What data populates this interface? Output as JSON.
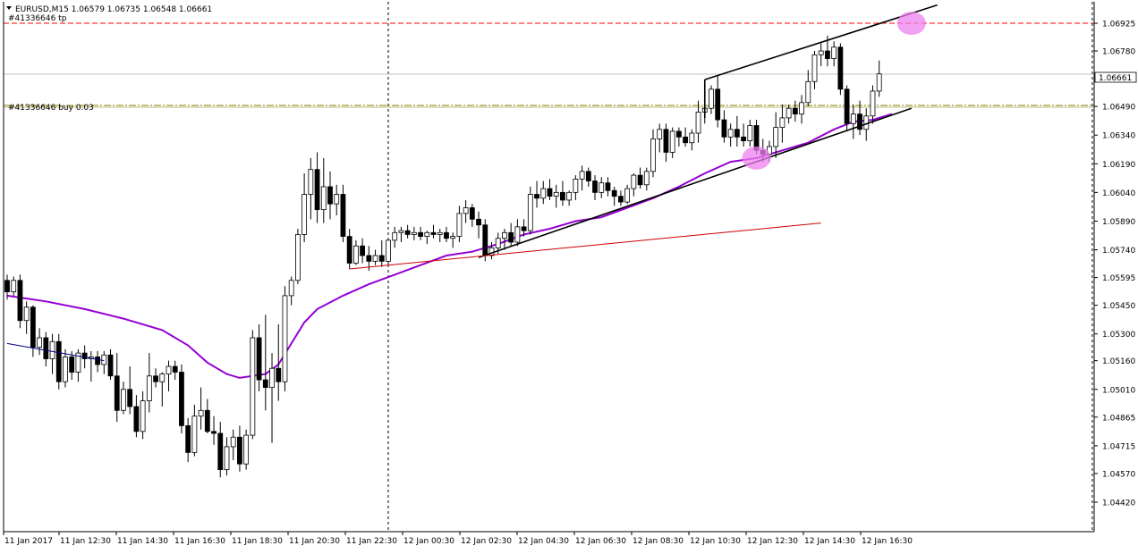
{
  "header": {
    "symbol_line": "EURUSD,M15  1.06579 1.06735 1.06548 1.06661",
    "tp_label": "#41336646 tp",
    "buy_label": "#41336646 buy 0.03"
  },
  "colors": {
    "background": "#ffffff",
    "candle_bull_fill": "#ffffff",
    "candle_bear_fill": "#000000",
    "candle_outline": "#000000",
    "ma_line": "#9400d3",
    "tp_line": "#ff0000",
    "entry_line": "#808000",
    "red_trendline": "#cc0000",
    "blue_trendline": "#000080",
    "highlight": "#ee82ee",
    "current_price_box": "#ffffff"
  },
  "chart_data": {
    "type": "candlestick",
    "title": "EURUSD,M15",
    "ohlc_header": {
      "open": 1.06579,
      "high": 1.06735,
      "low": 1.06548,
      "close": 1.06661
    },
    "y_ticks": [
      1.06925,
      1.0678,
      1.06635,
      1.0649,
      1.0634,
      1.0619,
      1.0604,
      1.0589,
      1.0574,
      1.05595,
      1.0545,
      1.053,
      1.0516,
      1.0501,
      1.04865,
      1.04715,
      1.0457,
      1.0442
    ],
    "x_ticks": [
      "11 Jan 2017",
      "11 Jan 12:30",
      "11 Jan 14:30",
      "11 Jan 16:30",
      "11 Jan 18:30",
      "11 Jan 20:30",
      "11 Jan 22:30",
      "12 Jan 00:30",
      "12 Jan 02:30",
      "12 Jan 04:30",
      "12 Jan 06:30",
      "12 Jan 08:30",
      "12 Jan 10:30",
      "12 Jan 12:30",
      "12 Jan 14:30",
      "12 Jan 16:30"
    ],
    "current_price": 1.06661,
    "tp_level": 1.06925,
    "entry_level": 1.06495,
    "grid": false,
    "ohlc": [
      [
        1.0558,
        1.0561,
        1.0548,
        1.0552
      ],
      [
        1.0552,
        1.056,
        1.055,
        1.0558
      ],
      [
        1.0558,
        1.0561,
        1.0533,
        1.0537
      ],
      [
        1.0537,
        1.0547,
        1.053,
        1.0544
      ],
      [
        1.0544,
        1.0545,
        1.0518,
        1.0523
      ],
      [
        1.0523,
        1.0533,
        1.0519,
        1.0528
      ],
      [
        1.0528,
        1.0531,
        1.0513,
        1.0517
      ],
      [
        1.0517,
        1.053,
        1.0509,
        1.0526
      ],
      [
        1.0526,
        1.053,
        1.0501,
        1.0505
      ],
      [
        1.0505,
        1.0522,
        1.0502,
        1.0518
      ],
      [
        1.0518,
        1.0521,
        1.0506,
        1.051
      ],
      [
        1.051,
        1.0522,
        1.0505,
        1.052
      ],
      [
        1.052,
        1.0524,
        1.0512,
        1.0517
      ],
      [
        1.0517,
        1.0521,
        1.0505,
        1.0518
      ],
      [
        1.0518,
        1.0521,
        1.051,
        1.0514
      ],
      [
        1.0514,
        1.0521,
        1.0509,
        1.0519
      ],
      [
        1.0519,
        1.0522,
        1.0506,
        1.0508
      ],
      [
        1.0508,
        1.052,
        1.0484,
        1.049
      ],
      [
        1.049,
        1.0505,
        1.0488,
        1.0501
      ],
      [
        1.0501,
        1.0513,
        1.0488,
        1.0492
      ],
      [
        1.0492,
        1.0498,
        1.0476,
        1.0479
      ],
      [
        1.0479,
        1.05,
        1.0475,
        1.0495
      ],
      [
        1.0495,
        1.052,
        1.0489,
        1.0508
      ],
      [
        1.0508,
        1.0512,
        1.0502,
        1.0505
      ],
      [
        1.0505,
        1.051,
        1.0492,
        1.0509
      ],
      [
        1.0509,
        1.0516,
        1.05,
        1.0513
      ],
      [
        1.0513,
        1.0516,
        1.0506,
        1.051
      ],
      [
        1.051,
        1.0514,
        1.0478,
        1.0482
      ],
      [
        1.0482,
        1.0486,
        1.0463,
        1.0468
      ],
      [
        1.0468,
        1.0493,
        1.0466,
        1.0487
      ],
      [
        1.0487,
        1.0502,
        1.048,
        1.049
      ],
      [
        1.049,
        1.0496,
        1.0478,
        1.0479
      ],
      [
        1.0479,
        1.0487,
        1.0472,
        1.0478
      ],
      [
        1.0478,
        1.0484,
        1.0455,
        1.0459
      ],
      [
        1.0459,
        1.0476,
        1.0456,
        1.0471
      ],
      [
        1.0471,
        1.048,
        1.0464,
        1.0476
      ],
      [
        1.0476,
        1.0482,
        1.0458,
        1.0462
      ],
      [
        1.0462,
        1.048,
        1.0459,
        1.0477
      ],
      [
        1.0477,
        1.0532,
        1.0475,
        1.0528
      ],
      [
        1.0528,
        1.0535,
        1.05,
        1.0506
      ],
      [
        1.0506,
        1.054,
        1.049,
        1.0502
      ],
      [
        1.0502,
        1.052,
        1.0473,
        1.0512
      ],
      [
        1.0512,
        1.0535,
        1.0495,
        1.0505
      ],
      [
        1.0505,
        1.0555,
        1.05,
        1.055
      ],
      [
        1.055,
        1.056,
        1.0545,
        1.0558
      ],
      [
        1.0558,
        1.0585,
        1.0556,
        1.0582
      ],
      [
        1.0582,
        1.0614,
        1.0578,
        1.0603
      ],
      [
        1.0603,
        1.0622,
        1.059,
        1.0616
      ],
      [
        1.0616,
        1.0625,
        1.0588,
        1.0595
      ],
      [
        1.0595,
        1.0622,
        1.0588,
        1.0607
      ],
      [
        1.0607,
        1.0615,
        1.059,
        1.0598
      ],
      [
        1.0598,
        1.0608,
        1.0592,
        1.0603
      ],
      [
        1.0603,
        1.0608,
        1.0578,
        1.0581
      ],
      [
        1.0581,
        1.0585,
        1.0564,
        1.0567
      ],
      [
        1.0567,
        1.0579,
        1.0566,
        1.0576
      ],
      [
        1.0576,
        1.058,
        1.0567,
        1.0571
      ],
      [
        1.0571,
        1.0576,
        1.0563,
        1.0568
      ],
      [
        1.0568,
        1.0574,
        1.0566,
        1.0571
      ],
      [
        1.0571,
        1.0579,
        1.0565,
        1.0568
      ],
      [
        1.0568,
        1.058,
        1.0566,
        1.0579
      ],
      [
        1.0579,
        1.0586,
        1.0575,
        1.0583
      ],
      [
        1.0583,
        1.0586,
        1.0578,
        1.0584
      ],
      [
        1.0584,
        1.0587,
        1.058,
        1.0582
      ],
      [
        1.0582,
        1.0586,
        1.0579,
        1.0583
      ],
      [
        1.0583,
        1.0586,
        1.0579,
        1.0581
      ],
      [
        1.0581,
        1.0584,
        1.0577,
        1.0583
      ],
      [
        1.0583,
        1.0587,
        1.058,
        1.0582
      ],
      [
        1.0582,
        1.0585,
        1.0578,
        1.0583
      ],
      [
        1.0583,
        1.0586,
        1.0578,
        1.058
      ],
      [
        1.058,
        1.0583,
        1.0575,
        1.0581
      ],
      [
        1.0581,
        1.0597,
        1.0578,
        1.0593
      ],
      [
        1.0593,
        1.06,
        1.0588,
        1.0596
      ],
      [
        1.0596,
        1.0598,
        1.0586,
        1.059
      ],
      [
        1.059,
        1.0594,
        1.058,
        1.0587
      ],
      [
        1.0587,
        1.059,
        1.0568,
        1.0571
      ],
      [
        1.0571,
        1.0578,
        1.0569,
        1.0575
      ],
      [
        1.0575,
        1.0583,
        1.0572,
        1.058
      ],
      [
        1.058,
        1.0585,
        1.0574,
        1.0583
      ],
      [
        1.0583,
        1.0588,
        1.0576,
        1.0578
      ],
      [
        1.0578,
        1.059,
        1.0576,
        1.0586
      ],
      [
        1.0586,
        1.059,
        1.0581,
        1.0584
      ],
      [
        1.0584,
        1.0607,
        1.0582,
        1.0603
      ],
      [
        1.0603,
        1.061,
        1.0596,
        1.0601
      ],
      [
        1.0601,
        1.061,
        1.0598,
        1.0606
      ],
      [
        1.0606,
        1.0611,
        1.06,
        1.0602
      ],
      [
        1.0602,
        1.0608,
        1.0596,
        1.0604
      ],
      [
        1.0604,
        1.061,
        1.0597,
        1.06
      ],
      [
        1.06,
        1.0605,
        1.0597,
        1.0604
      ],
      [
        1.0604,
        1.0613,
        1.06,
        1.0611
      ],
      [
        1.0611,
        1.0618,
        1.0605,
        1.0615
      ],
      [
        1.0615,
        1.0617,
        1.0607,
        1.061
      ],
      [
        1.061,
        1.0613,
        1.06,
        1.0604
      ],
      [
        1.0604,
        1.0612,
        1.0601,
        1.0609
      ],
      [
        1.0609,
        1.0612,
        1.0602,
        1.0605
      ],
      [
        1.0605,
        1.0607,
        1.0597,
        1.0602
      ],
      [
        1.0602,
        1.0605,
        1.0597,
        1.0599
      ],
      [
        1.0599,
        1.0608,
        1.0598,
        1.0606
      ],
      [
        1.0606,
        1.0614,
        1.0602,
        1.0613
      ],
      [
        1.0613,
        1.0617,
        1.0606,
        1.0608
      ],
      [
        1.0608,
        1.0617,
        1.0605,
        1.0615
      ],
      [
        1.0615,
        1.0637,
        1.0612,
        1.0632
      ],
      [
        1.0632,
        1.064,
        1.0625,
        1.0637
      ],
      [
        1.0637,
        1.064,
        1.062,
        1.0625
      ],
      [
        1.0625,
        1.0638,
        1.0622,
        1.0636
      ],
      [
        1.0636,
        1.0638,
        1.0628,
        1.0633
      ],
      [
        1.0633,
        1.0638,
        1.0628,
        1.063
      ],
      [
        1.063,
        1.0637,
        1.0626,
        1.0635
      ],
      [
        1.0635,
        1.0652,
        1.063,
        1.0646
      ],
      [
        1.0646,
        1.0652,
        1.064,
        1.0648
      ],
      [
        1.0648,
        1.066,
        1.0645,
        1.0658
      ],
      [
        1.0658,
        1.0665,
        1.0638,
        1.0642
      ],
      [
        1.0642,
        1.0647,
        1.063,
        1.0633
      ],
      [
        1.0633,
        1.064,
        1.0628,
        1.0637
      ],
      [
        1.0637,
        1.0644,
        1.0628,
        1.0633
      ],
      [
        1.0633,
        1.064,
        1.0628,
        1.0631
      ],
      [
        1.0631,
        1.0642,
        1.0628,
        1.0639
      ],
      [
        1.0639,
        1.0642,
        1.0624,
        1.0626
      ],
      [
        1.0626,
        1.0632,
        1.062,
        1.0624
      ],
      [
        1.0624,
        1.0631,
        1.062,
        1.0628
      ],
      [
        1.0628,
        1.0646,
        1.0622,
        1.0638
      ],
      [
        1.0638,
        1.065,
        1.063,
        1.0643
      ],
      [
        1.0643,
        1.065,
        1.064,
        1.0648
      ],
      [
        1.0648,
        1.0652,
        1.0641,
        1.0645
      ],
      [
        1.0645,
        1.0655,
        1.064,
        1.0651
      ],
      [
        1.0651,
        1.0668,
        1.0649,
        1.0662
      ],
      [
        1.0662,
        1.0678,
        1.0658,
        1.0676
      ],
      [
        1.0676,
        1.0682,
        1.067,
        1.0678
      ],
      [
        1.0678,
        1.0686,
        1.067,
        1.0674
      ],
      [
        1.0674,
        1.0683,
        1.067,
        1.068
      ],
      [
        1.068,
        1.0682,
        1.0655,
        1.0658
      ],
      [
        1.0658,
        1.066,
        1.0636,
        1.064
      ],
      [
        1.064,
        1.065,
        1.0632,
        1.0645
      ],
      [
        1.0645,
        1.0652,
        1.0634,
        1.0637
      ],
      [
        1.0637,
        1.0648,
        1.0631,
        1.0644
      ],
      [
        1.0644,
        1.066,
        1.064,
        1.0657
      ],
      [
        1.0657,
        1.0673,
        1.0654,
        1.0666
      ]
    ],
    "ma": [
      [
        0,
        1.055
      ],
      [
        6,
        1.0547
      ],
      [
        12,
        1.0543
      ],
      [
        18,
        1.0538
      ],
      [
        24,
        1.0532
      ],
      [
        28,
        1.0524
      ],
      [
        31,
        1.0515
      ],
      [
        34,
        1.0509
      ],
      [
        36,
        1.0507
      ],
      [
        40,
        1.0509
      ],
      [
        42,
        1.0514
      ],
      [
        44,
        1.0525
      ],
      [
        46,
        1.0536
      ],
      [
        48,
        1.0543
      ],
      [
        52,
        1.055
      ],
      [
        56,
        1.0556
      ],
      [
        60,
        1.0561
      ],
      [
        64,
        1.0566
      ],
      [
        68,
        1.0571
      ],
      [
        72,
        1.0573
      ],
      [
        76,
        1.0577
      ],
      [
        80,
        1.0582
      ],
      [
        84,
        1.0585
      ],
      [
        88,
        1.0589
      ],
      [
        92,
        1.0591
      ],
      [
        96,
        1.0596
      ],
      [
        100,
        1.0601
      ],
      [
        104,
        1.0607
      ],
      [
        108,
        1.0614
      ],
      [
        112,
        1.062
      ],
      [
        116,
        1.0622
      ],
      [
        120,
        1.0626
      ],
      [
        124,
        1.063
      ],
      [
        128,
        1.0637
      ],
      [
        131,
        1.0641
      ],
      [
        134,
        1.0642
      ],
      [
        137,
        1.0645
      ]
    ],
    "trendlines": [
      {
        "name": "channel-upper",
        "from": [
          108,
          1.0663
        ],
        "to": [
          144,
          1.0702
        ]
      },
      {
        "name": "channel-lower",
        "from": [
          73,
          1.057
        ],
        "to": [
          140,
          1.0648
        ]
      },
      {
        "name": "red-support",
        "from": [
          53,
          1.0564
        ],
        "to": [
          126,
          1.0588
        ]
      },
      {
        "name": "blue-line",
        "from": [
          0,
          1.0525
        ],
        "to": [
          15,
          1.0516
        ]
      }
    ],
    "highlights": [
      {
        "name": "tp-marker",
        "at": [
          140,
          1.06925
        ]
      },
      {
        "name": "touch-marker",
        "at": [
          116,
          1.0622
        ]
      }
    ],
    "session_dividers": [
      59,
      168
    ]
  }
}
